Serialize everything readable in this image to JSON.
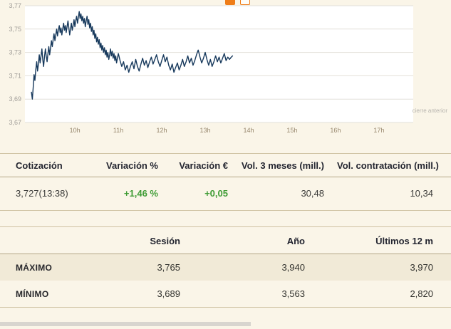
{
  "accent_color": "#ef7d18",
  "icons": [
    {
      "name": "social-icon-1",
      "style": "solid-orange-square"
    },
    {
      "name": "social-icon-2",
      "style": "orange-outline-square"
    }
  ],
  "chart": {
    "previous_close_label": "cierre anterior",
    "line_color": "#17395c",
    "gridline_color": "#e2e0da",
    "plot_background": "#ffffff"
  },
  "chart_data": {
    "type": "line",
    "title": "",
    "xlabel": "",
    "ylabel": "",
    "grid": "horizontal",
    "legend": "none",
    "ylim": [
      3.67,
      3.77
    ],
    "xlim": [
      8.85,
      17.79
    ],
    "yticks": [
      {
        "value": 3.77,
        "label": "3,77"
      },
      {
        "value": 3.75,
        "label": "3,75"
      },
      {
        "value": 3.73,
        "label": "3,73"
      },
      {
        "value": 3.71,
        "label": "3,71"
      },
      {
        "value": 3.69,
        "label": "3,69"
      },
      {
        "value": 3.67,
        "label": "3,67"
      }
    ],
    "xticks": [
      {
        "value": 10,
        "label": "10h"
      },
      {
        "value": 11,
        "label": "11h"
      },
      {
        "value": 12,
        "label": "12h"
      },
      {
        "value": 13,
        "label": "13h"
      },
      {
        "value": 14,
        "label": "14h"
      },
      {
        "value": 15,
        "label": "15h"
      },
      {
        "value": 16,
        "label": "16h"
      },
      {
        "value": 17,
        "label": "17h"
      }
    ],
    "series": [
      {
        "name": "intraday-price",
        "color": "#17395c",
        "points": [
          [
            9.0,
            3.696
          ],
          [
            9.02,
            3.69
          ],
          [
            9.04,
            3.7
          ],
          [
            9.06,
            3.711
          ],
          [
            9.08,
            3.706
          ],
          [
            9.1,
            3.715
          ],
          [
            9.12,
            3.722
          ],
          [
            9.14,
            3.714
          ],
          [
            9.16,
            3.72
          ],
          [
            9.18,
            3.728
          ],
          [
            9.2,
            3.721
          ],
          [
            9.22,
            3.727
          ],
          [
            9.24,
            3.733
          ],
          [
            9.26,
            3.724
          ],
          [
            9.28,
            3.718
          ],
          [
            9.3,
            3.726
          ],
          [
            9.32,
            3.733
          ],
          [
            9.34,
            3.727
          ],
          [
            9.36,
            3.722
          ],
          [
            9.38,
            3.729
          ],
          [
            9.4,
            3.735
          ],
          [
            9.42,
            3.728
          ],
          [
            9.44,
            3.734
          ],
          [
            9.46,
            3.74
          ],
          [
            9.48,
            3.735
          ],
          [
            9.5,
            3.741
          ],
          [
            9.52,
            3.746
          ],
          [
            9.54,
            3.74
          ],
          [
            9.56,
            3.745
          ],
          [
            9.58,
            3.75
          ],
          [
            9.6,
            3.744
          ],
          [
            9.62,
            3.749
          ],
          [
            9.64,
            3.753
          ],
          [
            9.66,
            3.747
          ],
          [
            9.68,
            3.751
          ],
          [
            9.7,
            3.745
          ],
          [
            9.72,
            3.75
          ],
          [
            9.74,
            3.755
          ],
          [
            9.76,
            3.749
          ],
          [
            9.78,
            3.753
          ],
          [
            9.8,
            3.747
          ],
          [
            9.82,
            3.752
          ],
          [
            9.84,
            3.757
          ],
          [
            9.86,
            3.751
          ],
          [
            9.88,
            3.745
          ],
          [
            9.9,
            3.75
          ],
          [
            9.92,
            3.755
          ],
          [
            9.94,
            3.749
          ],
          [
            9.96,
            3.753
          ],
          [
            9.98,
            3.758
          ],
          [
            10.0,
            3.752
          ],
          [
            10.02,
            3.757
          ],
          [
            10.04,
            3.761
          ],
          [
            10.06,
            3.755
          ],
          [
            10.08,
            3.76
          ],
          [
            10.1,
            3.765
          ],
          [
            10.12,
            3.759
          ],
          [
            10.14,
            3.763
          ],
          [
            10.16,
            3.757
          ],
          [
            10.18,
            3.761
          ],
          [
            10.2,
            3.755
          ],
          [
            10.22,
            3.759
          ],
          [
            10.24,
            3.752
          ],
          [
            10.26,
            3.757
          ],
          [
            10.28,
            3.761
          ],
          [
            10.3,
            3.754
          ],
          [
            10.32,
            3.758
          ],
          [
            10.34,
            3.751
          ],
          [
            10.36,
            3.755
          ],
          [
            10.38,
            3.748
          ],
          [
            10.4,
            3.752
          ],
          [
            10.42,
            3.745
          ],
          [
            10.44,
            3.749
          ],
          [
            10.46,
            3.742
          ],
          [
            10.48,
            3.746
          ],
          [
            10.5,
            3.739
          ],
          [
            10.52,
            3.743
          ],
          [
            10.54,
            3.737
          ],
          [
            10.56,
            3.741
          ],
          [
            10.58,
            3.734
          ],
          [
            10.6,
            3.738
          ],
          [
            10.62,
            3.732
          ],
          [
            10.64,
            3.736
          ],
          [
            10.66,
            3.73
          ],
          [
            10.68,
            3.734
          ],
          [
            10.7,
            3.728
          ],
          [
            10.72,
            3.732
          ],
          [
            10.74,
            3.726
          ],
          [
            10.76,
            3.73
          ],
          [
            10.78,
            3.724
          ],
          [
            10.8,
            3.728
          ],
          [
            10.82,
            3.733
          ],
          [
            10.84,
            3.727
          ],
          [
            10.86,
            3.731
          ],
          [
            10.88,
            3.725
          ],
          [
            10.9,
            3.729
          ],
          [
            10.92,
            3.723
          ],
          [
            10.94,
            3.727
          ],
          [
            10.96,
            3.721
          ],
          [
            10.98,
            3.725
          ],
          [
            11.0,
            3.729
          ],
          [
            11.04,
            3.723
          ],
          [
            11.08,
            3.718
          ],
          [
            11.12,
            3.722
          ],
          [
            11.16,
            3.715
          ],
          [
            11.2,
            3.719
          ],
          [
            11.24,
            3.713
          ],
          [
            11.28,
            3.718
          ],
          [
            11.32,
            3.722
          ],
          [
            11.36,
            3.716
          ],
          [
            11.4,
            3.724
          ],
          [
            11.44,
            3.718
          ],
          [
            11.48,
            3.714
          ],
          [
            11.52,
            3.72
          ],
          [
            11.56,
            3.725
          ],
          [
            11.6,
            3.719
          ],
          [
            11.64,
            3.723
          ],
          [
            11.68,
            3.717
          ],
          [
            11.72,
            3.722
          ],
          [
            11.76,
            3.726
          ],
          [
            11.8,
            3.72
          ],
          [
            11.84,
            3.724
          ],
          [
            11.88,
            3.728
          ],
          [
            11.92,
            3.722
          ],
          [
            11.96,
            3.718
          ],
          [
            12.0,
            3.723
          ],
          [
            12.04,
            3.728
          ],
          [
            12.08,
            3.722
          ],
          [
            12.12,
            3.726
          ],
          [
            12.16,
            3.719
          ],
          [
            12.2,
            3.715
          ],
          [
            12.24,
            3.72
          ],
          [
            12.28,
            3.713
          ],
          [
            12.32,
            3.717
          ],
          [
            12.36,
            3.721
          ],
          [
            12.4,
            3.715
          ],
          [
            12.44,
            3.719
          ],
          [
            12.48,
            3.724
          ],
          [
            12.52,
            3.718
          ],
          [
            12.56,
            3.722
          ],
          [
            12.6,
            3.727
          ],
          [
            12.64,
            3.721
          ],
          [
            12.68,
            3.725
          ],
          [
            12.72,
            3.719
          ],
          [
            12.76,
            3.723
          ],
          [
            12.8,
            3.728
          ],
          [
            12.84,
            3.732
          ],
          [
            12.88,
            3.726
          ],
          [
            12.92,
            3.721
          ],
          [
            12.96,
            3.725
          ],
          [
            13.0,
            3.73
          ],
          [
            13.04,
            3.724
          ],
          [
            13.08,
            3.719
          ],
          [
            13.12,
            3.724
          ],
          [
            13.16,
            3.718
          ],
          [
            13.2,
            3.722
          ],
          [
            13.24,
            3.727
          ],
          [
            13.28,
            3.722
          ],
          [
            13.32,
            3.726
          ],
          [
            13.36,
            3.721
          ],
          [
            13.4,
            3.725
          ],
          [
            13.44,
            3.729
          ],
          [
            13.48,
            3.723
          ],
          [
            13.52,
            3.726
          ],
          [
            13.56,
            3.724
          ],
          [
            13.6,
            3.726
          ],
          [
            13.63,
            3.727
          ]
        ]
      }
    ]
  },
  "quote_table": {
    "positive_color": "#3f9c35",
    "headers": [
      "Cotización",
      "Variación %",
      "Variación €",
      "Vol. 3 meses (mill.)",
      "Vol. contratación (mill.)"
    ],
    "row": {
      "cotizacion": "3,727(13:38)",
      "variacion_pct": "+1,46 %",
      "variacion_eur": "+0,05",
      "vol_3_meses": "30,48",
      "vol_contratacion": "10,34"
    }
  },
  "range_table": {
    "headers": [
      "",
      "Sesión",
      "Año",
      "Últimos 12 m"
    ],
    "rows": [
      {
        "label": "MÁXIMO",
        "sesion": "3,765",
        "ano": "3,940",
        "ultimos_12m": "3,970"
      },
      {
        "label": "MÍNIMO",
        "sesion": "3,689",
        "ano": "3,563",
        "ultimos_12m": "2,820"
      }
    ]
  }
}
